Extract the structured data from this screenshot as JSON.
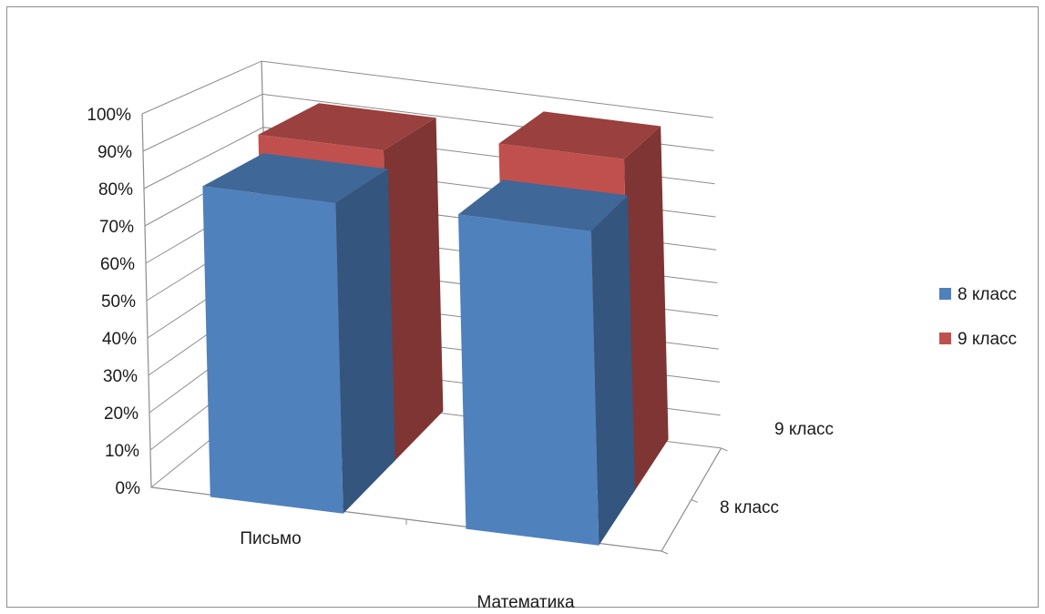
{
  "chart_data": {
    "type": "bar",
    "variant": "3d-clustered-depth",
    "categories": [
      "Письмо",
      "Математика"
    ],
    "depth_categories": [
      "8 класс",
      "9 класс"
    ],
    "series": [
      {
        "name": "8 класс",
        "values": [
          83,
          84
        ],
        "color": "#4f81bd"
      },
      {
        "name": "9 класс",
        "values": [
          89,
          95
        ],
        "color": "#c0504d"
      }
    ],
    "y_ticks": [
      "0%",
      "10%",
      "20%",
      "30%",
      "40%",
      "50%",
      "60%",
      "70%",
      "80%",
      "90%",
      "100%"
    ],
    "ylim": [
      0,
      100
    ],
    "y_unit": "%",
    "grid": true,
    "legend": {
      "position": "right",
      "items": [
        {
          "label": "8 класс",
          "color": "#4f81bd"
        },
        {
          "label": "9 класс",
          "color": "#c0504d"
        }
      ]
    }
  }
}
